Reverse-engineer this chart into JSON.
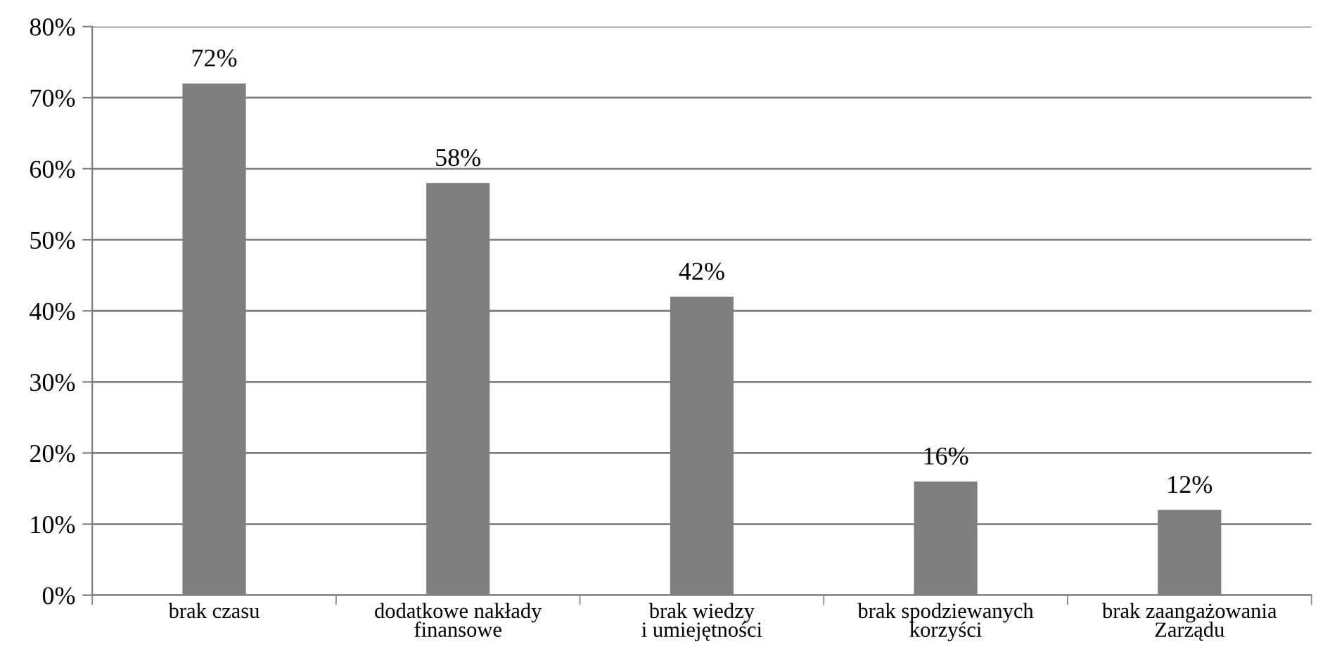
{
  "chart_data": {
    "type": "bar",
    "categories": [
      "brak czasu",
      "dodatkowe nakłady\nfinansowe",
      "brak wiedzy\ni umiejętności",
      "brak spodziewanych\nkorzyści",
      "brak zaangażowania\nZarządu"
    ],
    "values": [
      72,
      58,
      42,
      16,
      12
    ],
    "value_labels": [
      "72%",
      "58%",
      "42%",
      "16%",
      "12%"
    ],
    "color": "#7f7f7f",
    "ylim": [
      0,
      80
    ],
    "yticks": [
      {
        "value": 0,
        "label": "0%"
      },
      {
        "value": 10,
        "label": "10%"
      },
      {
        "value": 20,
        "label": "20%"
      },
      {
        "value": 30,
        "label": "30%"
      },
      {
        "value": 40,
        "label": "40%"
      },
      {
        "value": 50,
        "label": "50%"
      },
      {
        "value": 60,
        "label": "60%"
      },
      {
        "value": 70,
        "label": "70%"
      },
      {
        "value": 80,
        "label": "80%"
      }
    ],
    "grid": "y"
  }
}
